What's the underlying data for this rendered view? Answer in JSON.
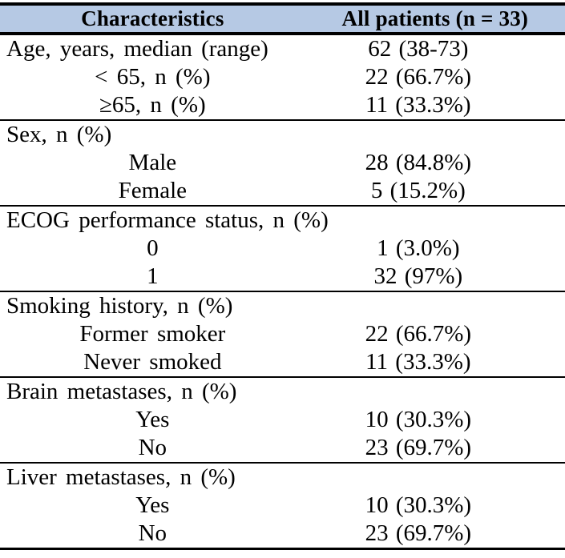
{
  "table": {
    "header": {
      "col1": "Characteristics",
      "col2": "All patients (n = 33)"
    },
    "sections": [
      {
        "rows": [
          {
            "label": "Age, years, median (range)",
            "indent": false,
            "value": "62 (38-73)"
          },
          {
            "label": "< 65, n (%)",
            "indent": true,
            "value": "22 (66.7%)"
          },
          {
            "label": "≥65, n (%)",
            "indent": true,
            "value": "11 (33.3%)"
          }
        ]
      },
      {
        "rows": [
          {
            "label": "Sex, n (%)",
            "indent": false,
            "value": ""
          },
          {
            "label": "Male",
            "indent": true,
            "value": "28 (84.8%)"
          },
          {
            "label": "Female",
            "indent": true,
            "value": "5 (15.2%)"
          }
        ]
      },
      {
        "rows": [
          {
            "label": "ECOG performance status, n (%)",
            "indent": false,
            "value": ""
          },
          {
            "label": "0",
            "indent": true,
            "value": "1 (3.0%)"
          },
          {
            "label": "1",
            "indent": true,
            "value": "32 (97%)"
          }
        ]
      },
      {
        "rows": [
          {
            "label": "Smoking history, n (%)",
            "indent": false,
            "value": ""
          },
          {
            "label": "Former smoker",
            "indent": true,
            "value": "22 (66.7%)"
          },
          {
            "label": "Never smoked",
            "indent": true,
            "value": "11 (33.3%)"
          }
        ]
      },
      {
        "rows": [
          {
            "label": "Brain metastases, n (%)",
            "indent": false,
            "value": ""
          },
          {
            "label": "Yes",
            "indent": true,
            "value": "10 (30.3%)"
          },
          {
            "label": "No",
            "indent": true,
            "value": "23 (69.7%)"
          }
        ]
      },
      {
        "rows": [
          {
            "label": "Liver metastases, n (%)",
            "indent": false,
            "value": ""
          },
          {
            "label": "Yes",
            "indent": true,
            "value": "10 (30.3%)"
          },
          {
            "label": "No",
            "indent": true,
            "value": "23 (69.7%)"
          }
        ]
      }
    ]
  },
  "colors": {
    "header_bg": "#b6c9e4",
    "border": "#000000",
    "text": "#000000"
  }
}
